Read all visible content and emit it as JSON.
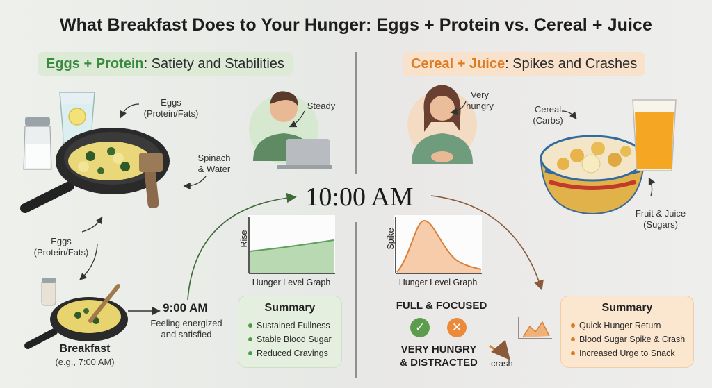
{
  "title": "What Breakfast Does to Your Hunger: Eggs + Protein vs. Cereal + Juice",
  "left_header": {
    "highlight": "Eggs + Protein",
    "rest": ": Satiety and Stabilities"
  },
  "right_header": {
    "highlight": "Cereal + Juice",
    "rest": ": Spikes and Crashes"
  },
  "left_labels": {
    "eggs_top": [
      "Eggs",
      "(Protein/Fats)"
    ],
    "spinach": [
      "Spinach",
      "& Water"
    ],
    "eggs_mid": [
      "Eggs",
      "(Protein/Fats)"
    ],
    "steady": "Steady",
    "breakfast": "Breakfast",
    "breakfast_time": "(e.g., 7:00 AM)",
    "time_9": "9:00 AM",
    "feeling": [
      "Feeling energized",
      "and satisfied"
    ]
  },
  "center_time": "10:00 AM",
  "right_labels": {
    "very_hungry": [
      "Very",
      "hungry"
    ],
    "cereal": [
      "Cereal",
      "(Carbs)"
    ],
    "fruit_juice": [
      "Fruit & Juice",
      "(Sugars)"
    ],
    "full_focused": "FULL & FOCUSED",
    "very_hungry_distracted": [
      "VERY HUNGRY",
      "& DISTRACTED"
    ],
    "crash": "crash"
  },
  "left_graph": {
    "ylabel": "Rise",
    "caption": "Hunger Level Graph",
    "color": "#9cc79a"
  },
  "right_graph": {
    "ylabel": "Spike",
    "caption": "Hunger Level Graph",
    "color": "#f1b887"
  },
  "left_summary": {
    "title": "Summary",
    "items": [
      "Sustained Fullness",
      "Stable Blood Sugar",
      "Reduced Cravings"
    ]
  },
  "right_summary": {
    "title": "Summary",
    "items": [
      "Quick Hunger Return",
      "Blood Sugar Spike & Crash",
      "Increased Urge to Snack"
    ]
  },
  "colors": {
    "green_accent": "#3b8a42",
    "orange_accent": "#e07a20",
    "check": "#5b9d4c",
    "cross": "#ea8a3a"
  },
  "icons": {
    "check": "✓",
    "cross": "✕"
  }
}
